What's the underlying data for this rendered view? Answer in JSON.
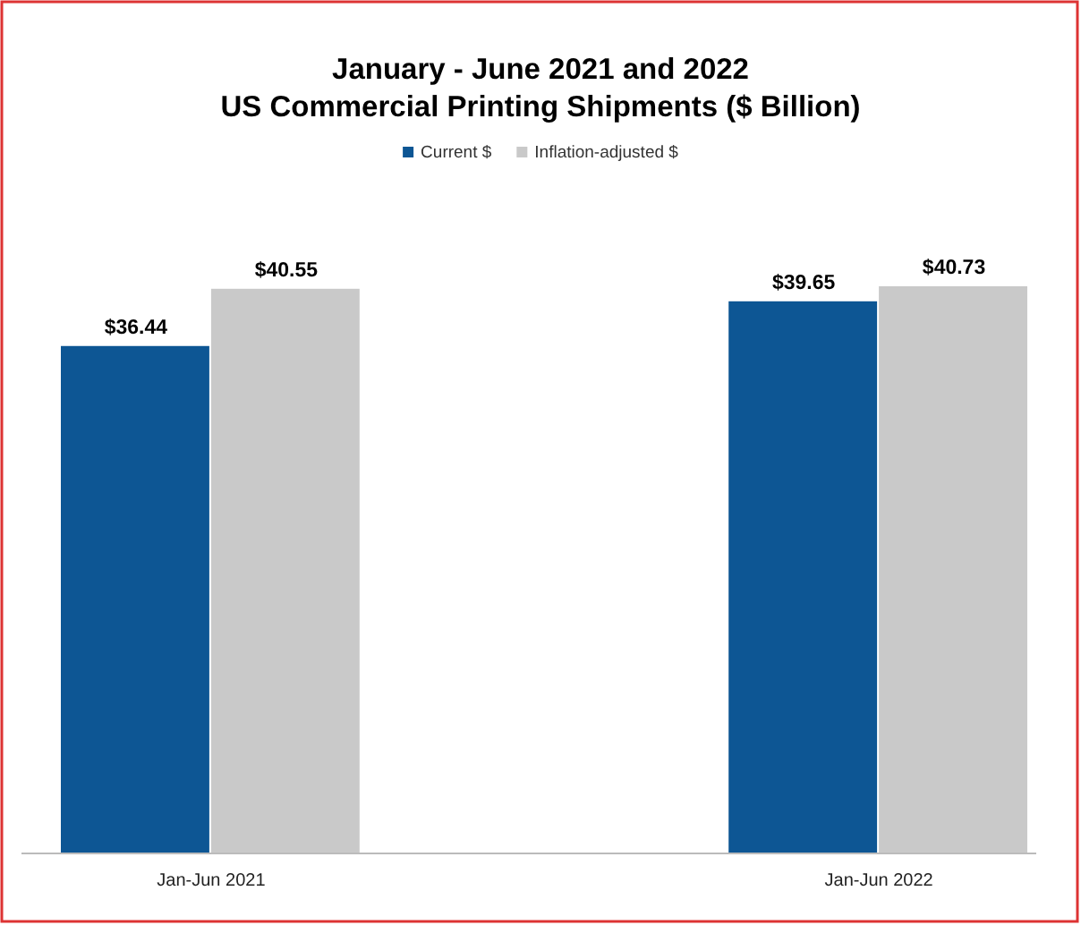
{
  "chart_data": {
    "type": "bar",
    "title": "January - June 2021 and 2022\nUS Commercial Printing Shipments ($ Billion)",
    "categories": [
      "Jan-Jun 2021",
      "Jan-Jun 2022"
    ],
    "series": [
      {
        "name": "Current $",
        "color": "#0d5694",
        "values": [
          36.44,
          39.65
        ],
        "value_labels": [
          "$36.44",
          "$39.65"
        ]
      },
      {
        "name": "Inflation-adjusted $",
        "color": "#c9c9c9",
        "values": [
          40.55,
          40.73
        ],
        "value_labels": [
          "$40.55",
          "$40.73"
        ]
      }
    ],
    "tick_labels": "x",
    "legend": "top"
  }
}
